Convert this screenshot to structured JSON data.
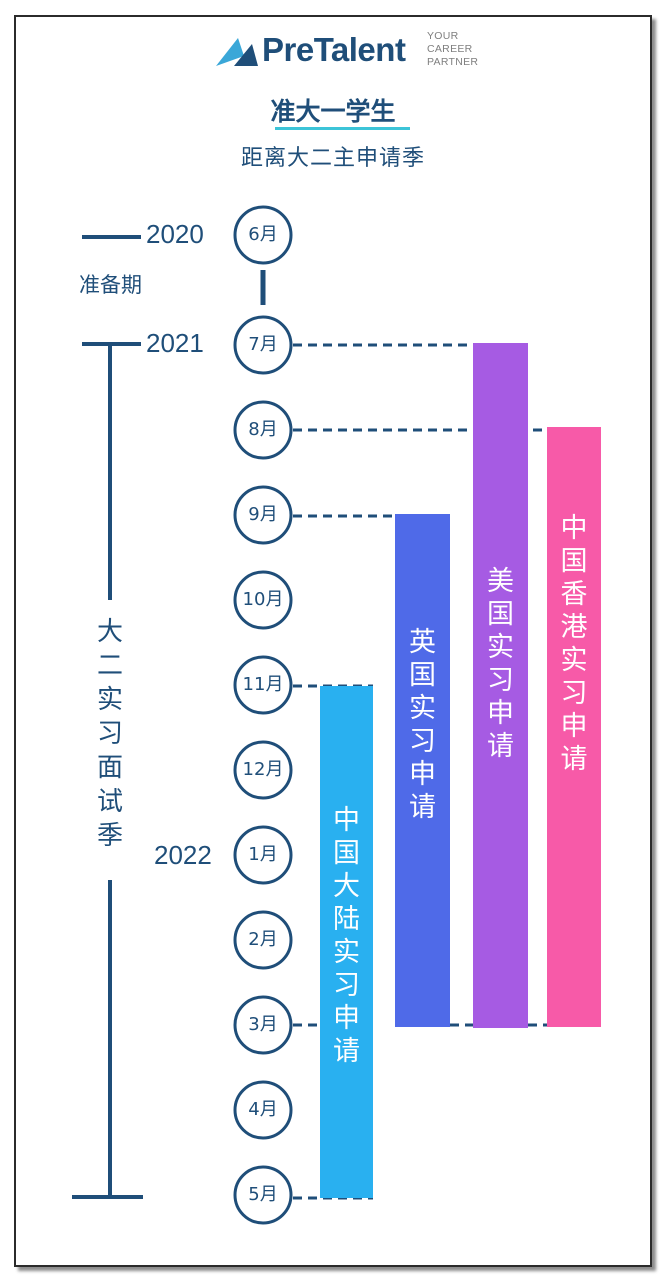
{
  "brand": {
    "name": "PreTalent",
    "tagline": [
      "YOUR",
      "CAREER",
      "PARTNER"
    ]
  },
  "header": {
    "title": "准大一学生",
    "subtitle": "距离大二主申请季"
  },
  "timeline": {
    "years": [
      "2020",
      "2021",
      "2022"
    ],
    "prep_label": "准备期",
    "season_label": "大二实习面试季",
    "months": [
      "6月",
      "7月",
      "8月",
      "9月",
      "10月",
      "11月",
      "12月",
      "1月",
      "2月",
      "3月",
      "4月",
      "5月"
    ]
  },
  "bars": [
    {
      "label": "中国大陆实习申请",
      "color": "#29b0f0",
      "start": "11月",
      "end": "5月"
    },
    {
      "label": "英国实习申请",
      "color": "#4f6ae8",
      "start": "9月",
      "end": "3月"
    },
    {
      "label": "美国实习申请",
      "color": "#a65be3",
      "start": "7月",
      "end": "3月"
    },
    {
      "label": "中国香港实习申请",
      "color": "#f75aa8",
      "start": "8月",
      "end": "3月"
    }
  ],
  "colors": {
    "navy": "#1f4e79",
    "accent": "#3cc4d8"
  }
}
